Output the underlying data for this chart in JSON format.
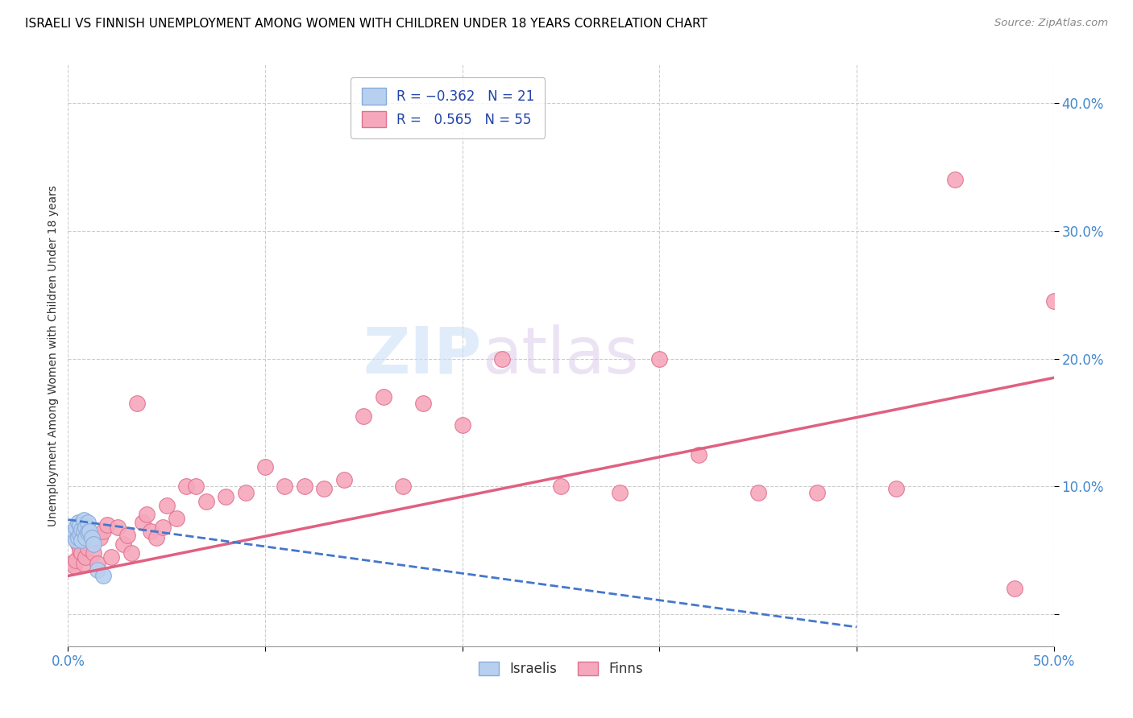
{
  "title": "ISRAELI VS FINNISH UNEMPLOYMENT AMONG WOMEN WITH CHILDREN UNDER 18 YEARS CORRELATION CHART",
  "source": "Source: ZipAtlas.com",
  "ylabel": "Unemployment Among Women with Children Under 18 years",
  "legend_labels": [
    "Israelis",
    "Finns"
  ],
  "israel_color": "#b8d0f0",
  "finn_color": "#f5a8bc",
  "israel_edge": "#88aad8",
  "finn_edge": "#e07090",
  "israel_line_color": "#4477cc",
  "finn_line_color": "#e06080",
  "watermark_zip": "ZIP",
  "watermark_atlas": "atlas",
  "xlim": [
    0.0,
    0.5
  ],
  "ylim": [
    -0.025,
    0.43
  ],
  "xticks": [
    0.0,
    0.1,
    0.2,
    0.3,
    0.4,
    0.5
  ],
  "yticks": [
    0.0,
    0.1,
    0.2,
    0.3,
    0.4
  ],
  "israel_x": [
    0.002,
    0.003,
    0.004,
    0.004,
    0.005,
    0.005,
    0.006,
    0.006,
    0.007,
    0.007,
    0.008,
    0.008,
    0.009,
    0.009,
    0.01,
    0.01,
    0.011,
    0.012,
    0.013,
    0.015,
    0.018
  ],
  "israel_y": [
    0.062,
    0.065,
    0.068,
    0.058,
    0.072,
    0.06,
    0.07,
    0.063,
    0.066,
    0.058,
    0.074,
    0.065,
    0.068,
    0.06,
    0.072,
    0.064,
    0.065,
    0.06,
    0.055,
    0.035,
    0.03
  ],
  "finn_x": [
    0.002,
    0.003,
    0.004,
    0.005,
    0.006,
    0.007,
    0.008,
    0.008,
    0.009,
    0.01,
    0.012,
    0.013,
    0.015,
    0.016,
    0.018,
    0.02,
    0.022,
    0.025,
    0.028,
    0.03,
    0.032,
    0.035,
    0.038,
    0.04,
    0.042,
    0.045,
    0.048,
    0.05,
    0.055,
    0.06,
    0.065,
    0.07,
    0.08,
    0.09,
    0.1,
    0.11,
    0.12,
    0.13,
    0.14,
    0.15,
    0.16,
    0.17,
    0.18,
    0.2,
    0.22,
    0.25,
    0.28,
    0.3,
    0.32,
    0.35,
    0.38,
    0.42,
    0.45,
    0.48,
    0.5
  ],
  "finn_y": [
    0.04,
    0.038,
    0.042,
    0.055,
    0.05,
    0.048,
    0.04,
    0.062,
    0.045,
    0.052,
    0.058,
    0.048,
    0.04,
    0.06,
    0.065,
    0.07,
    0.045,
    0.068,
    0.055,
    0.062,
    0.048,
    0.165,
    0.072,
    0.078,
    0.065,
    0.06,
    0.068,
    0.085,
    0.075,
    0.1,
    0.1,
    0.088,
    0.092,
    0.095,
    0.115,
    0.1,
    0.1,
    0.098,
    0.105,
    0.155,
    0.17,
    0.1,
    0.165,
    0.148,
    0.2,
    0.1,
    0.095,
    0.2,
    0.125,
    0.095,
    0.095,
    0.098,
    0.34,
    0.02,
    0.245
  ],
  "finn_line_x0": 0.0,
  "finn_line_y0": 0.03,
  "finn_line_x1": 0.5,
  "finn_line_y1": 0.185,
  "israel_line_x0": 0.0,
  "israel_line_y0": 0.074,
  "israel_line_x1": 0.4,
  "israel_line_y1": -0.01
}
